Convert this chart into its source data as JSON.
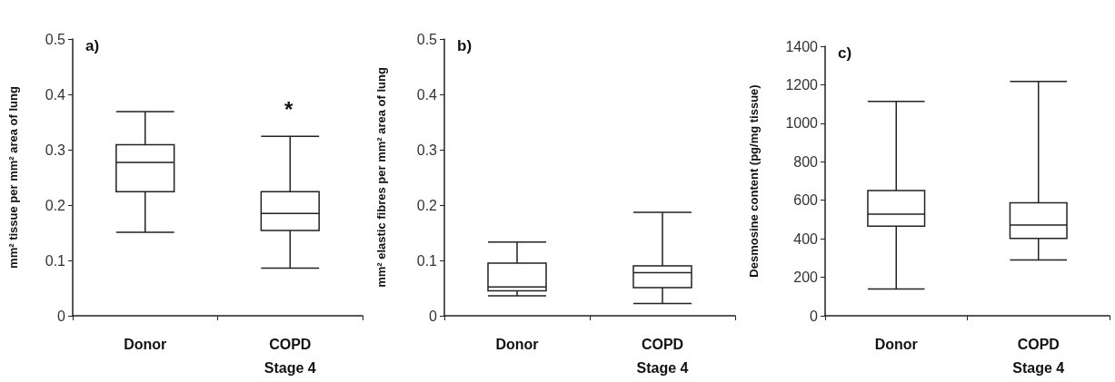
{
  "chart_data": [
    {
      "type": "box",
      "title": "a)",
      "ylabel": "mm² tissue per mm² area of lung",
      "categories": [
        "Donor",
        "COPD\nStage 4"
      ],
      "boxes": [
        {
          "low": 0.151,
          "q1": 0.224,
          "median": 0.277,
          "q3": 0.309,
          "high": 0.369
        },
        {
          "low": 0.086,
          "q1": 0.154,
          "median": 0.185,
          "q3": 0.224,
          "high": 0.324
        }
      ],
      "ylim": [
        0,
        0.5
      ],
      "yticks": [
        0,
        0.1,
        0.2,
        0.3,
        0.4,
        0.5
      ],
      "annotations": [
        "*"
      ]
    },
    {
      "type": "box",
      "title": "b)",
      "ylabel": "mm² elastic fibres per mm² area of lung",
      "categories": [
        "Donor",
        "COPD\nStage 4"
      ],
      "boxes": [
        {
          "low": 0.036,
          "q1": 0.045,
          "median": 0.052,
          "q3": 0.095,
          "high": 0.133
        },
        {
          "low": 0.022,
          "q1": 0.051,
          "median": 0.078,
          "q3": 0.09,
          "high": 0.187
        }
      ],
      "ylim": [
        0,
        0.5
      ],
      "yticks": [
        0,
        0.1,
        0.2,
        0.3,
        0.4,
        0.5
      ]
    },
    {
      "type": "box",
      "title": "c)",
      "ylabel": "Desmosine content (pg/mg tissue)",
      "categories": [
        "Donor",
        "COPD\nStage 4"
      ],
      "boxes": [
        {
          "low": 139,
          "q1": 465,
          "median": 528,
          "q3": 650,
          "high": 1114
        },
        {
          "low": 290,
          "q1": 402,
          "median": 471,
          "q3": 587,
          "high": 1217
        }
      ],
      "ylim": [
        0,
        1400
      ],
      "yticks": [
        0,
        200,
        400,
        600,
        800,
        1000,
        1200,
        1400
      ]
    }
  ]
}
